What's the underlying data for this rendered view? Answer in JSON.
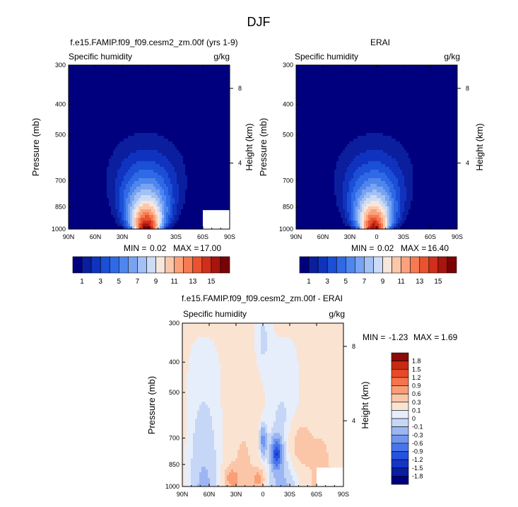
{
  "page_title": "DJF",
  "chart_data": [
    {
      "type": "heatmap",
      "title": "f.e15.FAMIP.f09_f09.cesm2_zm.00f (yrs 1-9)",
      "left_label": "Specific humidity",
      "right_label": "g/kg",
      "ylabel": "Pressure (mb)",
      "ylabel_right": "Height (km)",
      "x_ticks": [
        "90N",
        "60N",
        "30N",
        "0",
        "30S",
        "60S",
        "90S"
      ],
      "xlim": [
        90,
        -90
      ],
      "y_ticks": [
        300,
        400,
        500,
        700,
        850,
        1000
      ],
      "ylim": [
        1000,
        300
      ],
      "y_scale": "log",
      "height_ticks": [
        "8",
        "4"
      ],
      "peak_lat": 3,
      "peak_value": 17.0,
      "stats": {
        "min_label": "MIN =",
        "min": "0.02",
        "max_label": "MAX =",
        "max": "17.00"
      },
      "colorbar_labels": [
        "1",
        "3",
        "5",
        "7",
        "9",
        "11",
        "13",
        "15"
      ]
    },
    {
      "type": "heatmap",
      "title": "ERAI",
      "left_label": "Specific humidity",
      "right_label": "g/kg",
      "ylabel": "Pressure (mb)",
      "ylabel_right": "Height (km)",
      "x_ticks": [
        "90N",
        "60N",
        "30N",
        "0",
        "30S",
        "60S",
        "90S"
      ],
      "xlim": [
        90,
        -90
      ],
      "y_ticks": [
        300,
        400,
        500,
        700,
        850,
        1000
      ],
      "ylim": [
        1000,
        300
      ],
      "y_scale": "log",
      "height_ticks": [
        "8",
        "4"
      ],
      "peak_lat": 3,
      "peak_value": 16.4,
      "stats": {
        "min_label": "MIN =",
        "min": "0.02",
        "max_label": "MAX =",
        "max": "16.40"
      },
      "colorbar_labels": [
        "1",
        "3",
        "5",
        "7",
        "9",
        "11",
        "13",
        "15"
      ]
    },
    {
      "type": "heatmap",
      "title": "f.e15.FAMIP.f09_f09.cesm2_zm.00f - ERAI",
      "left_label": "Specific humidity",
      "right_label": "g/kg",
      "ylabel": "Pressure (mb)",
      "ylabel_right": "Height (km)",
      "x_ticks": [
        "90N",
        "60N",
        "30N",
        "0",
        "30S",
        "60S",
        "90S"
      ],
      "xlim": [
        90,
        -90
      ],
      "y_ticks": [
        300,
        400,
        500,
        700,
        850,
        1000
      ],
      "ylim": [
        1000,
        300
      ],
      "y_scale": "log",
      "height_ticks": [
        "8",
        "4"
      ],
      "stats": {
        "min_label": "MIN =",
        "min": "-1.23",
        "max_label": "MAX =",
        "max": "1.69"
      },
      "colorbar_labels": [
        "1.8",
        "1.5",
        "1.2",
        "0.9",
        "0.6",
        "0.3",
        "0.1",
        "0",
        "-0.1",
        "-0.3",
        "-0.6",
        "-0.9",
        "-1.2",
        "-1.5",
        "-1.8"
      ]
    }
  ],
  "colors": {
    "abs_scale": [
      "#00007f",
      "#0a1e9e",
      "#1033bf",
      "#1a4fd6",
      "#3069e6",
      "#4f86ee",
      "#78a3f2",
      "#a3c1f5",
      "#ccdcf7",
      "#f6e6dc",
      "#fbc7aa",
      "#fba27c",
      "#f67b52",
      "#e9532f",
      "#d02f1b",
      "#a8140e",
      "#7a0204"
    ],
    "diff_scale": [
      "#00007f",
      "#0a1ea0",
      "#1535c6",
      "#2752e0",
      "#4a74ea",
      "#7096ee",
      "#9bb6f2",
      "#c6d6f6",
      "#e6eefb",
      "#fbe3d2",
      "#fbc6a8",
      "#fa9e78",
      "#f5744b",
      "#e64a26",
      "#c72a14",
      "#8c0b05"
    ]
  }
}
